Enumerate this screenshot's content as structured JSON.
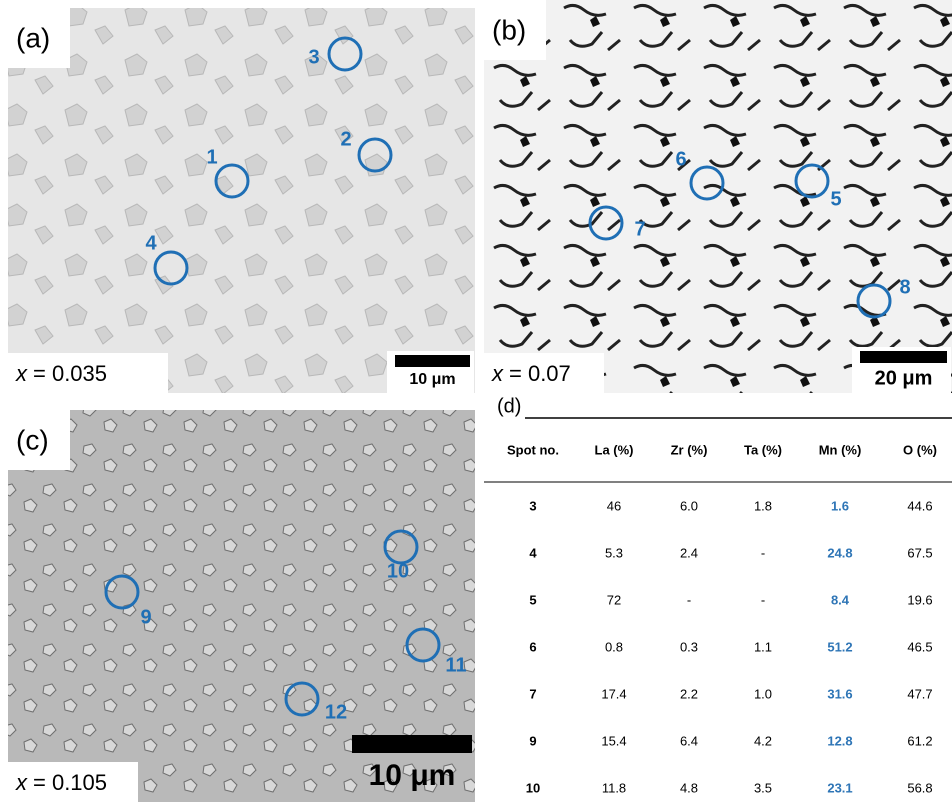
{
  "panels": [
    {
      "label": "(a)",
      "composition": {
        "variable": "x",
        "value": "= 0.035"
      },
      "scale_bar": "10 μm",
      "spots": [
        "1",
        "2",
        "3",
        "4"
      ]
    },
    {
      "label": "(b)",
      "composition": {
        "variable": "x",
        "value": "= 0.07"
      },
      "scale_bar": "20 μm",
      "spots": [
        "5",
        "6",
        "7",
        "8"
      ]
    },
    {
      "label": "(c)",
      "composition": {
        "variable": "x",
        "value": "= 0.105"
      },
      "scale_bar": "10 μm",
      "spots": [
        "9",
        "10",
        "11",
        "12"
      ]
    }
  ],
  "table": {
    "label": "(d)",
    "header": [
      "Spot no.",
      "La (%)",
      "Zr (%)",
      "Ta (%)",
      "Mn (%)",
      "O (%)"
    ],
    "rows": [
      [
        "3",
        "46",
        "6.0",
        "1.8",
        "1.6",
        "44.6"
      ],
      [
        "4",
        "5.3",
        "2.4",
        "-",
        "24.8",
        "67.5"
      ],
      [
        "5",
        "72",
        "-",
        "-",
        "8.4",
        "19.6"
      ],
      [
        "6",
        "0.8",
        "0.3",
        "1.1",
        "51.2",
        "46.5"
      ],
      [
        "7",
        "17.4",
        "2.2",
        "1.0",
        "31.6",
        "47.7"
      ],
      [
        "9",
        "15.4",
        "6.4",
        "4.2",
        "12.8",
        "61.2"
      ],
      [
        "10",
        "11.8",
        "4.8",
        "3.5",
        "23.1",
        "56.8"
      ]
    ]
  }
}
